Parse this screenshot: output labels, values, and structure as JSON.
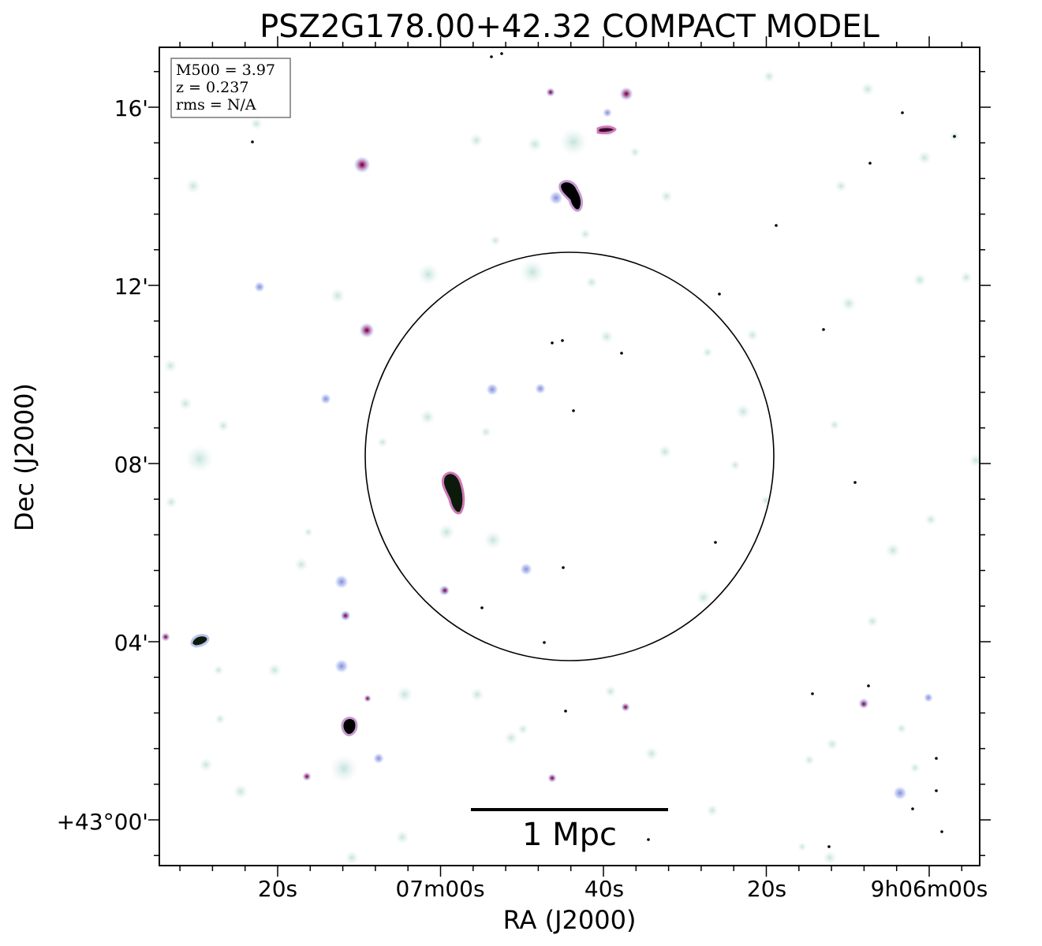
{
  "title": "PSZ2G178.00+42.32 COMPACT MODEL",
  "info_box": {
    "line1": "M500 = 3.97",
    "line2": "z = 0.237",
    "line3": "rms = N/A"
  },
  "axes": {
    "xlabel": "RA (J2000)",
    "ylabel": "Dec (J2000)",
    "x_ticks": [
      "20s",
      "07m00s",
      "40s",
      "20s",
      "9h06m00s"
    ],
    "y_ticks": [
      "16'",
      "12'",
      "08'",
      "04'",
      "+43°00'"
    ]
  },
  "scale_bar": {
    "label": "1 Mpc"
  },
  "colors": {
    "background": "#ffffff",
    "frame": "#000000",
    "faint_halo": "#cfe8e2",
    "blue_halo": "#9aa8e8",
    "pink_halo": "#e07ab4",
    "core": "#000000"
  }
}
